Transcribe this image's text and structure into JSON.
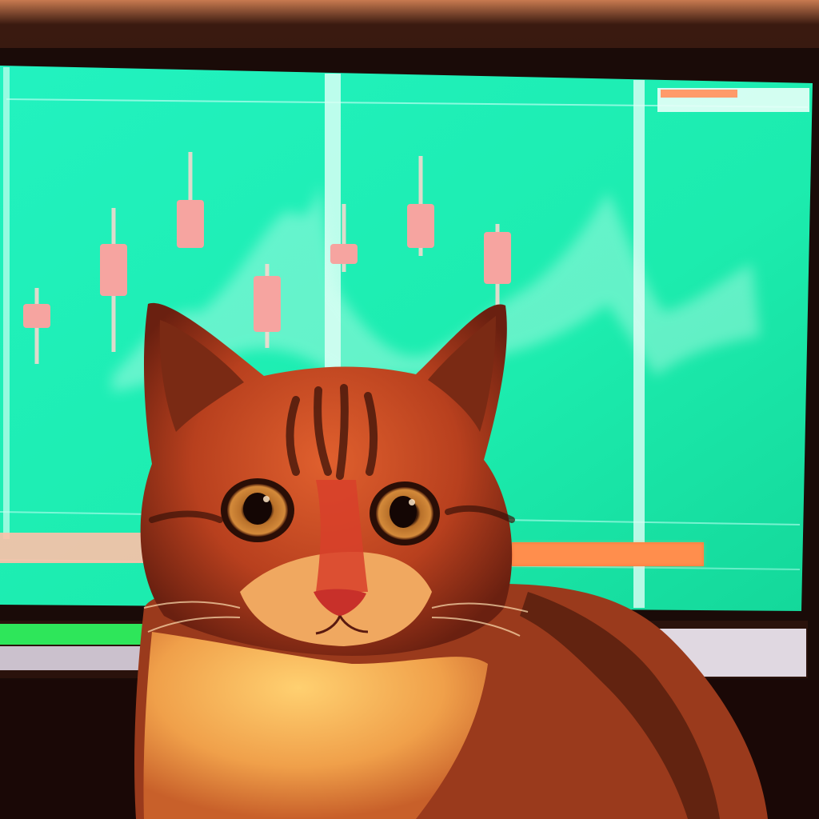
{
  "scene": {
    "description_name": "tabby-cat-in-front-of-trading-monitor",
    "colors": {
      "screen": "#1ef0b4",
      "screen_dark": "#12c890",
      "candle_body": "#f6a4a0",
      "candle_wick": "#ffd8d0",
      "bezel": "#1a0d0a",
      "wall": "#2a100a",
      "fur_orange": "#d4552a",
      "fur_dark": "#6a2412",
      "fur_light": "#f2b85a",
      "eye_iris": "#c8782a",
      "nose": "#e04a3a",
      "orange_bar": "#ff7a3a",
      "green_bar": "#2ee65a"
    }
  },
  "chart_data": {
    "type": "candlestick",
    "title": "",
    "xlabel": "",
    "ylabel": "",
    "candles": [
      {
        "index": 1,
        "open": 48,
        "close": 42,
        "high": 52,
        "low": 33
      },
      {
        "index": 2,
        "open": 63,
        "close": 50,
        "high": 72,
        "low": 36
      },
      {
        "index": 3,
        "open": 74,
        "close": 62,
        "high": 86,
        "low": 62
      },
      {
        "index": 4,
        "open": 55,
        "close": 41,
        "high": 58,
        "low": 37
      },
      {
        "index": 5,
        "open": 63,
        "close": 58,
        "high": 73,
        "low": 56
      },
      {
        "index": 6,
        "open": 73,
        "close": 62,
        "high": 85,
        "low": 60
      },
      {
        "index": 7,
        "open": 66,
        "close": 53,
        "high": 68,
        "low": 45
      }
    ],
    "ylim": [
      0,
      100
    ]
  }
}
